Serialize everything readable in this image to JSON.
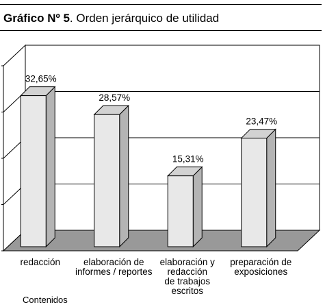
{
  "title": {
    "prefix": "Gráfico Nº 5",
    "rest": ". Orden jerárquico de utilidad"
  },
  "chart_data": {
    "type": "bar",
    "categories": [
      "redacción",
      "elaboración de informes / reportes",
      "elaboración y redacción de trabajos escritos",
      "preparación de exposiciones"
    ],
    "category_lines": [
      [
        "redacción"
      ],
      [
        "elaboración de",
        "informes / reportes"
      ],
      [
        "elaboración y",
        "redacción",
        "de trabajos",
        "escritos"
      ],
      [
        "preparación de",
        "exposiciones"
      ]
    ],
    "values": [
      32.65,
      28.57,
      15.31,
      23.47
    ],
    "value_labels": [
      "32,65%",
      "28,57%",
      "15,31%",
      "23,47%"
    ],
    "xlabel": "Contenidos",
    "ylabel": "",
    "ylim": [
      0,
      40
    ],
    "grid": true,
    "style": "3d-bar",
    "colors": {
      "bar_front": "#e8e8e8",
      "bar_side": "#b4b4b4",
      "bar_top": "#d2d2d2",
      "floor": "#999999"
    }
  }
}
